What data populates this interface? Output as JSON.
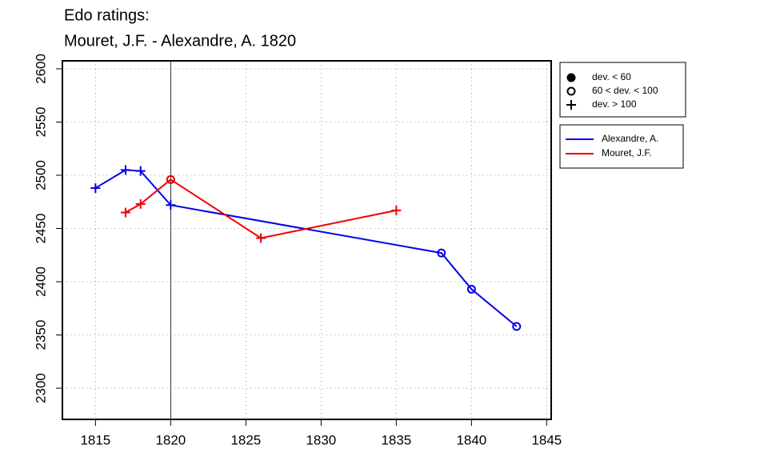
{
  "chart_data": {
    "type": "line",
    "title": [
      "Edo ratings:",
      "Mouret, J.F. - Alexandre, A. 1820"
    ],
    "xlim": [
      1812.8,
      1845.3
    ],
    "xticks": [
      1815,
      1820,
      1825,
      1830,
      1835,
      1840,
      1845
    ],
    "ylim": [
      2270.7,
      2607.5
    ],
    "yticks": [
      2300,
      2350,
      2400,
      2450,
      2500,
      2550,
      2600
    ],
    "grid": true,
    "vline": 1820,
    "marker_legend": [
      {
        "label": "dev. < 60",
        "marker": "dot"
      },
      {
        "label": "60 < dev. < 100",
        "marker": "circle"
      },
      {
        "label": "dev. > 100",
        "marker": "plus"
      }
    ],
    "series": [
      {
        "name": "Alexandre, A.",
        "color": "#0000ee",
        "x": [
          1815,
          1817,
          1818,
          1820,
          1838,
          1840,
          1843
        ],
        "values": [
          2488,
          2505,
          2504,
          2472,
          2427,
          2393,
          2358
        ],
        "markers": [
          "plus",
          "plus",
          "plus",
          "plus",
          "circle",
          "circle",
          "circle"
        ]
      },
      {
        "name": "Mouret, J.F.",
        "color": "#ee0000",
        "x": [
          1817,
          1818,
          1820,
          1826,
          1835
        ],
        "values": [
          2465,
          2473,
          2496,
          2441,
          2467
        ],
        "markers": [
          "plus",
          "plus",
          "circle",
          "plus",
          "plus"
        ]
      }
    ]
  }
}
